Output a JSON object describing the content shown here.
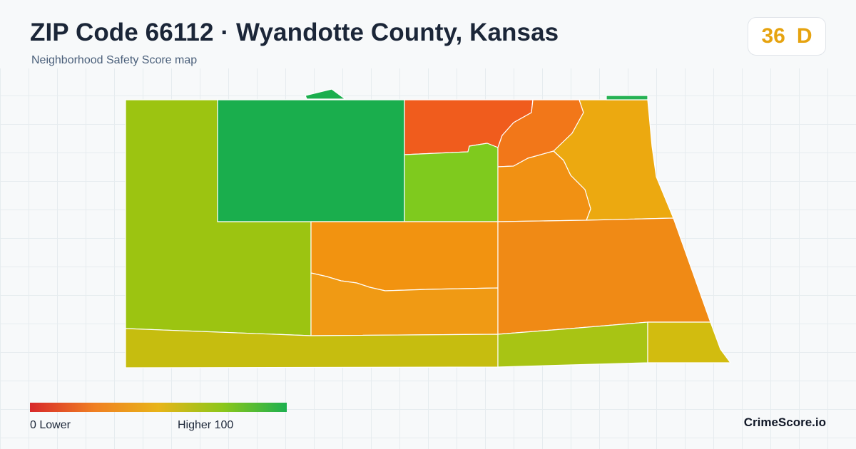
{
  "header": {
    "title": "ZIP Code 66112 · Wyandotte County, Kansas",
    "subtitle": "Neighborhood Safety Score map"
  },
  "score": {
    "value": "36",
    "grade": "D",
    "color": "#e6a310"
  },
  "legend": {
    "min_label": "0  Lower",
    "max_label": "Higher  100",
    "colors": [
      "#d7282a",
      "#f07f22",
      "#e8b418",
      "#8cc71a",
      "#1db04f"
    ]
  },
  "brand": "CrimeScore.io",
  "map": {
    "regions": [
      {
        "name": "northwest-block",
        "color": "#1aae4d"
      },
      {
        "name": "north-center-block",
        "color": "#f05c1d"
      },
      {
        "name": "center-block",
        "color": "#7fca1e"
      },
      {
        "name": "northeast-block-a",
        "color": "#f27719"
      },
      {
        "name": "northeast-block-b",
        "color": "#eca910"
      },
      {
        "name": "east-center-block",
        "color": "#f19113"
      },
      {
        "name": "west-block",
        "color": "#9cc411"
      },
      {
        "name": "south-center-block-a",
        "color": "#f29310"
      },
      {
        "name": "south-center-block-b",
        "color": "#f09a14"
      },
      {
        "name": "east-block",
        "color": "#f08a15"
      },
      {
        "name": "south-strip",
        "color": "#c6bd0f"
      },
      {
        "name": "southeast-block-a",
        "color": "#a8c414"
      },
      {
        "name": "southeast-block-b",
        "color": "#d2bc0f"
      },
      {
        "name": "north-sliver-a",
        "color": "#1aae4d"
      },
      {
        "name": "north-sliver-b",
        "color": "#26b254"
      }
    ]
  }
}
